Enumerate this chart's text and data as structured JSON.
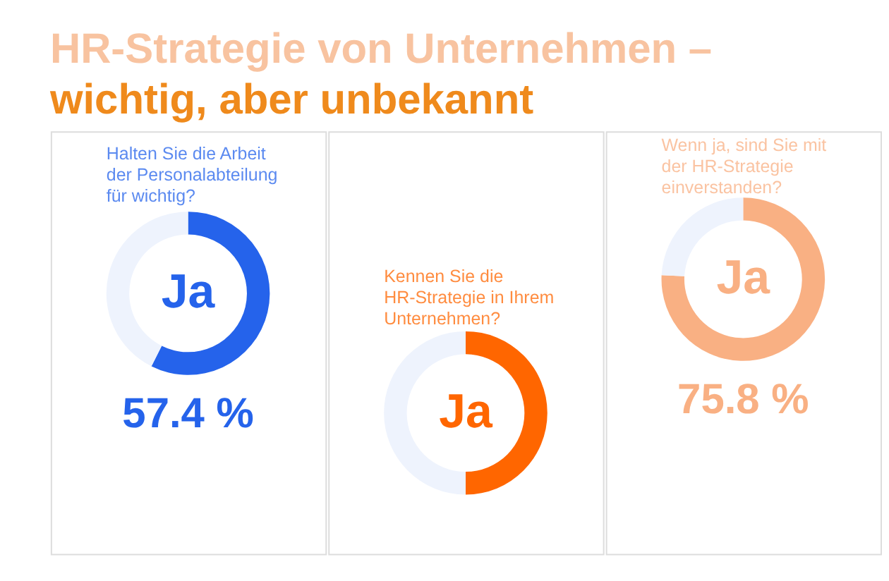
{
  "chart_data": [
    {
      "type": "donut",
      "title": "HR-Strategie von Unternehmen –",
      "subtitle": "wichtig, aber unbekannt",
      "annotations": [
        "Halten Sie die Arbeit der Personalabteilung für wichtig?"
      ],
      "categories": [
        "Ja",
        null
      ],
      "values": [
        57.4,
        42.6
      ],
      "colors": [
        "#2563eb",
        "#eef3fd"
      ],
      "value_labels": [
        "57.4 %",
        null
      ]
    },
    {
      "type": "donut",
      "annotations": [
        "Kennen Sie die HR-Strategie in Ihrem Unternehmen?"
      ],
      "categories": [
        "Ja",
        null
      ],
      "values": [
        50,
        50
      ],
      "colors": [
        "#ff6600",
        "#eef3fd"
      ]
    },
    {
      "type": "donut",
      "annotations": [
        "Wenn ja, sind Sie mit der HR-Strategie einverstanden?"
      ],
      "categories": [
        "Ja",
        null
      ],
      "values": [
        75.8,
        24.2
      ],
      "colors": [
        "#f9b083",
        "#eef3fd"
      ],
      "value_labels": [
        "75.8 %",
        null
      ]
    }
  ]
}
